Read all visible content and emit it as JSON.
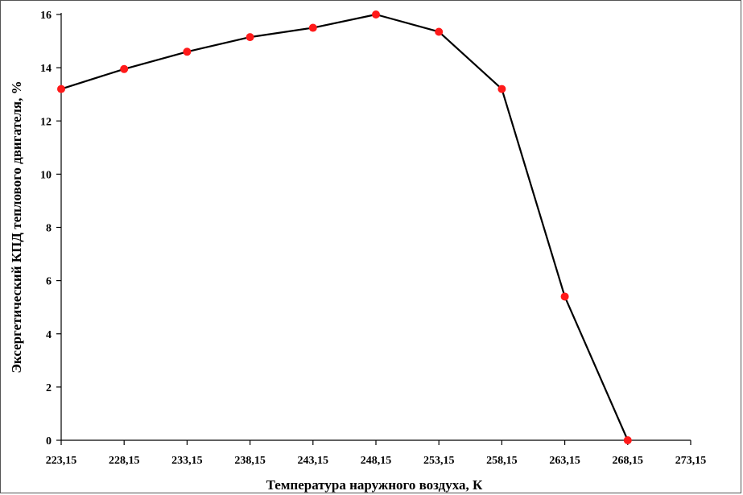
{
  "chart_data": {
    "type": "line",
    "xlabel": "Температура наружного воздуха, К",
    "ylabel": "Эксергетический КПД теплового двигателя, %",
    "x_ticks": [
      "223,15",
      "228,15",
      "233,15",
      "238,15",
      "243,15",
      "248,15",
      "253,15",
      "258,15",
      "263,15",
      "268,15",
      "273,15"
    ],
    "y_ticks": [
      "0",
      "2",
      "4",
      "6",
      "8",
      "10",
      "12",
      "14",
      "16"
    ],
    "xlim": [
      223.15,
      273.15
    ],
    "ylim": [
      0,
      16
    ],
    "grid": false,
    "series": [
      {
        "x": [
          223.15,
          228.15,
          233.15,
          238.15,
          243.15,
          248.15,
          253.15,
          258.15,
          263.15,
          268.15
        ],
        "y": [
          13.2,
          13.95,
          14.6,
          15.15,
          15.5,
          16.0,
          15.35,
          13.2,
          5.4,
          0.0
        ],
        "line_color": "#000000",
        "marker_color": "#ff1a1a"
      }
    ]
  }
}
